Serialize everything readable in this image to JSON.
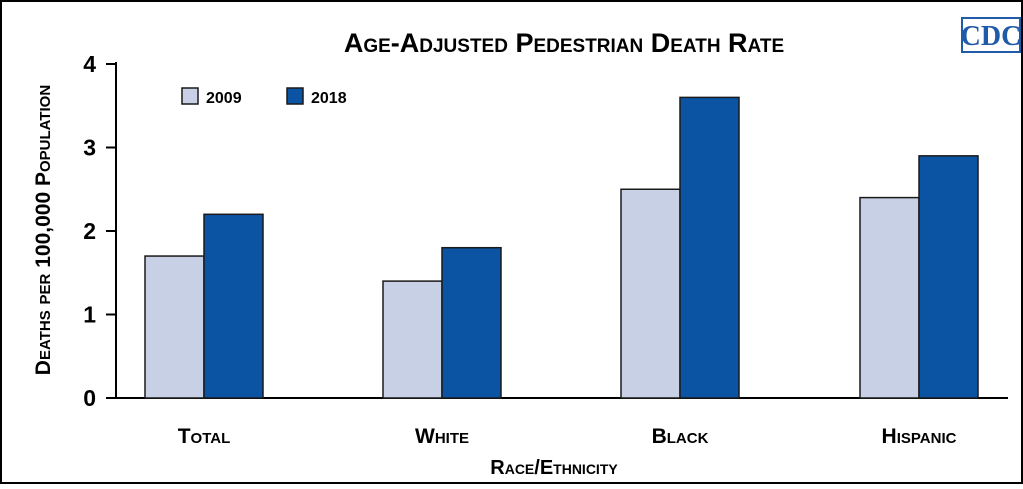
{
  "logo": {
    "text": "CDC"
  },
  "colors": {
    "series_2009": "#c8d0e6",
    "series_2018": "#0b54a4",
    "bar_stroke": "#1a1a1a",
    "logo_blue": "#1f5ba8"
  },
  "chart_data": {
    "type": "bar",
    "title": "Age-Adjusted Pedestrian Death Rate",
    "xlabel": "Race/Ethnicity",
    "ylabel": "Deaths per 100,000 Population",
    "categories": [
      "Total",
      "White",
      "Black",
      "Hispanic"
    ],
    "series": [
      {
        "name": "2009",
        "values": [
          1.7,
          1.4,
          2.5,
          2.4
        ]
      },
      {
        "name": "2018",
        "values": [
          2.2,
          1.8,
          3.6,
          2.9
        ]
      }
    ],
    "ylim": [
      0,
      4
    ],
    "yticks": [
      "0",
      "1",
      "2",
      "3",
      "4"
    ],
    "grid": false,
    "legend_position": "top-left"
  }
}
